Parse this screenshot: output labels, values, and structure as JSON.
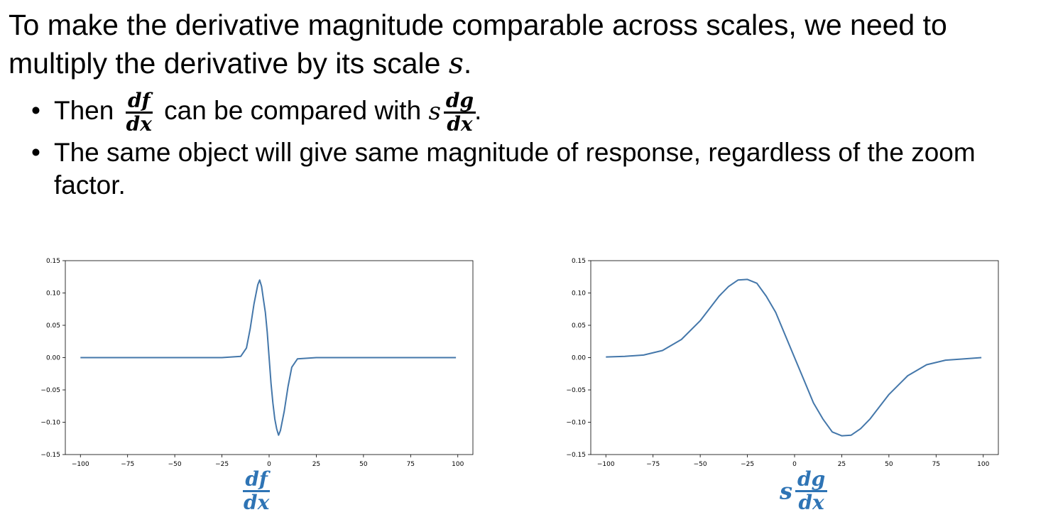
{
  "heading": {
    "part1": "To make the derivative magnitude comparable across scales, we need to multiply the derivative by its scale ",
    "var": "s",
    "end": "."
  },
  "bullets": {
    "b1": {
      "pre": "Then ",
      "frac1_num": "df",
      "frac1_den": "dx",
      "mid": " can be compared with ",
      "var": "s",
      "frac2_num": "dg",
      "frac2_den": "dx",
      "end": "."
    },
    "b2": {
      "text": "The same object will give same magnitude of response, regardless of the zoom factor."
    }
  },
  "captions": {
    "left": {
      "num": "df",
      "den": "dx"
    },
    "right": {
      "var": "s",
      "num": "dg",
      "den": "dx"
    }
  },
  "chart_data": [
    {
      "type": "line",
      "color": "#4477aa",
      "xlim": [
        -100,
        100
      ],
      "ylim": [
        -0.15,
        0.15
      ],
      "xticks": [
        "−100",
        "−75",
        "−50",
        "−25",
        "0",
        "25",
        "50",
        "75",
        "100"
      ],
      "yticks": [
        "0.15",
        "0.10",
        "0.05",
        "0.00",
        "−0.05",
        "−0.10",
        "−0.15"
      ],
      "series": [
        {
          "x": [
            -100,
            -25,
            -15,
            -12,
            -10,
            -8,
            -6,
            -5,
            -4,
            -3,
            -2,
            -1,
            0,
            1,
            2,
            3,
            4,
            5,
            6,
            8,
            10,
            12,
            15,
            25,
            99
          ],
          "y": [
            0,
            0,
            0.002,
            0.015,
            0.045,
            0.083,
            0.113,
            0.12,
            0.11,
            0.09,
            0.07,
            0.04,
            0,
            -0.04,
            -0.07,
            -0.095,
            -0.11,
            -0.12,
            -0.113,
            -0.083,
            -0.045,
            -0.015,
            -0.002,
            0,
            0
          ]
        }
      ]
    },
    {
      "type": "line",
      "color": "#4477aa",
      "xlim": [
        -100,
        100
      ],
      "ylim": [
        -0.15,
        0.15
      ],
      "xticks": [
        "−100",
        "−75",
        "−50",
        "−25",
        "0",
        "25",
        "50",
        "75",
        "100"
      ],
      "yticks": [
        "0.15",
        "0.10",
        "0.05",
        "0.00",
        "−0.05",
        "−0.10",
        "−0.15"
      ],
      "series": [
        {
          "x": [
            -100,
            -90,
            -80,
            -70,
            -60,
            -50,
            -40,
            -35,
            -30,
            -25,
            -20,
            -15,
            -10,
            -5,
            0,
            5,
            10,
            15,
            20,
            25,
            30,
            35,
            40,
            50,
            60,
            70,
            80,
            90,
            99
          ],
          "y": [
            0.001,
            0.002,
            0.004,
            0.011,
            0.028,
            0.057,
            0.095,
            0.11,
            0.12,
            0.121,
            0.115,
            0.095,
            0.07,
            0.035,
            0,
            -0.035,
            -0.07,
            -0.095,
            -0.115,
            -0.121,
            -0.12,
            -0.11,
            -0.095,
            -0.057,
            -0.028,
            -0.011,
            -0.004,
            -0.002,
            0
          ]
        }
      ]
    }
  ]
}
